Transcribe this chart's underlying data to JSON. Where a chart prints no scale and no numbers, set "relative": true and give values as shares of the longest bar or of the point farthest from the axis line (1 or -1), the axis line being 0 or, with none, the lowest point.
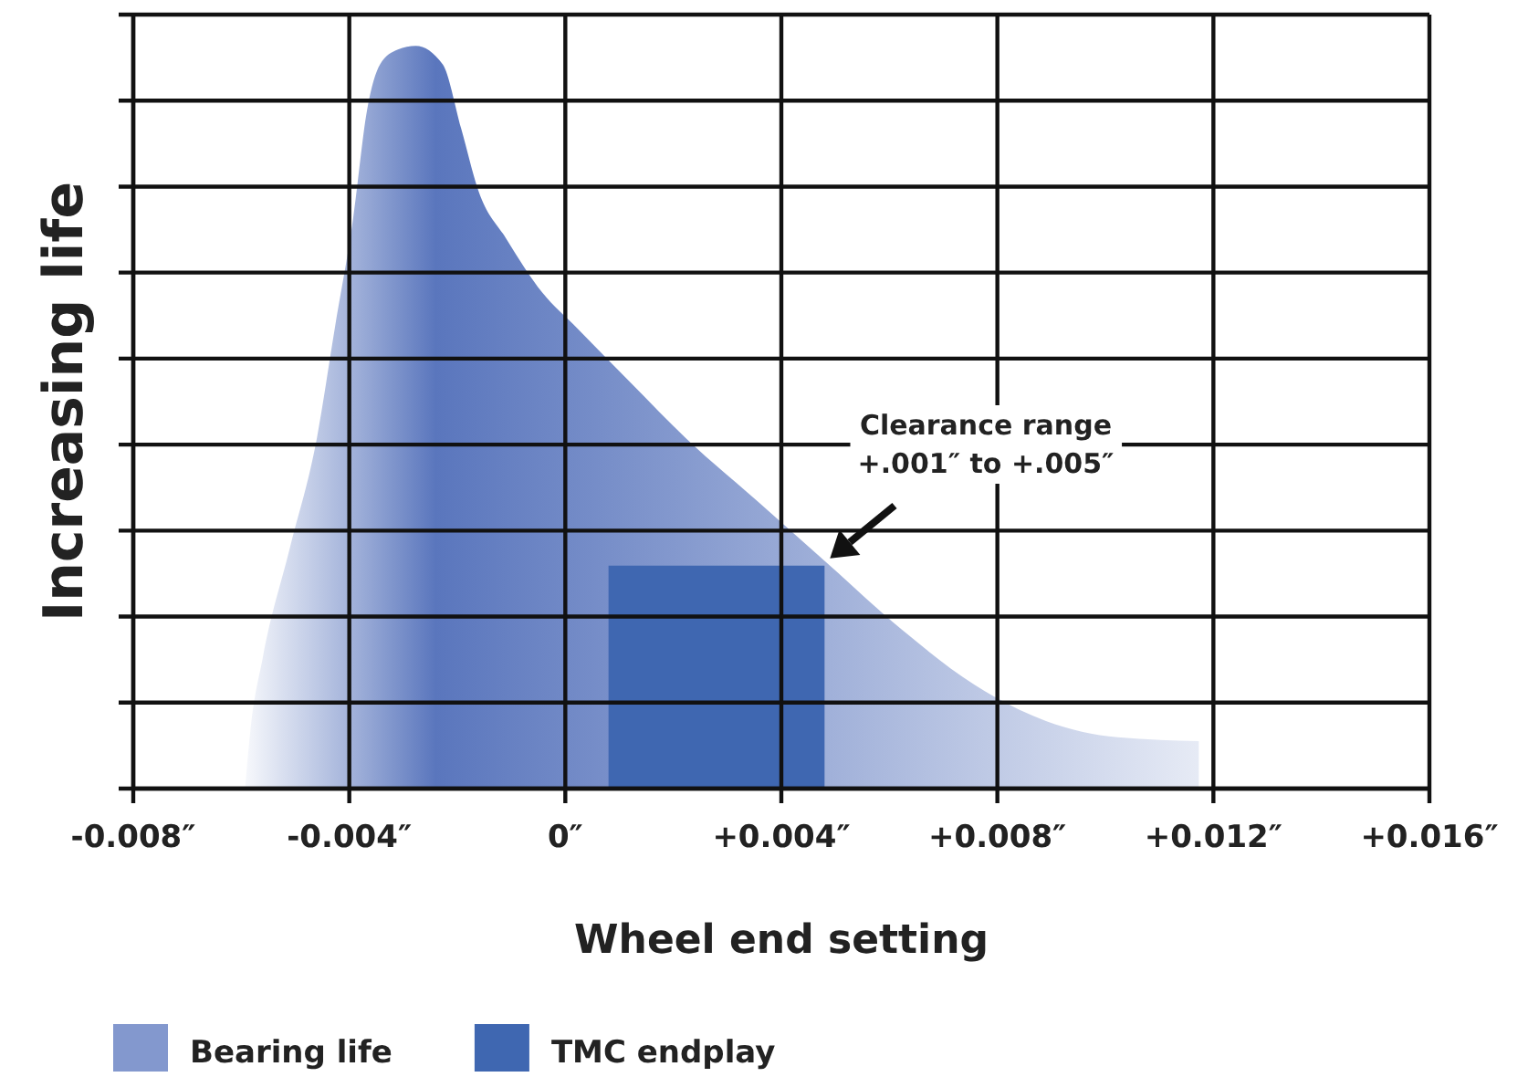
{
  "chart_data": {
    "type": "area",
    "xlabel": "Wheel end setting",
    "ylabel": "Increasing life",
    "relative": true,
    "xlim": [
      -0.008,
      0.016
    ],
    "xticks": [
      {
        "value": -0.008,
        "label": "-0.008″"
      },
      {
        "value": -0.004,
        "label": "-0.004″"
      },
      {
        "value": 0,
        "label": "0″"
      },
      {
        "value": 0.004,
        "label": "+0.004″"
      },
      {
        "value": 0.008,
        "label": "+0.008″"
      },
      {
        "value": 0.012,
        "label": "+0.012″"
      },
      {
        "value": 0.016,
        "label": "+0.016″"
      }
    ],
    "grid": true,
    "legend": "bottom left",
    "series": [
      {
        "name": "Bearing life",
        "color": "#5a76bd",
        "x": [
          -0.00593,
          -0.00583,
          -0.0056,
          -0.0051,
          -0.0046,
          -0.00427,
          -0.00393,
          -0.00367,
          -0.00343,
          -0.0031,
          -0.00277,
          -0.00227,
          -0.00193,
          -0.0016,
          -0.0011,
          -0.00043,
          0.00023,
          0.00123,
          0.00223,
          0.00357,
          0.0049,
          0.00623,
          0.00757,
          0.0089,
          0.01023,
          0.01173
        ],
        "values": [
          0,
          0.079,
          0.177,
          0.324,
          0.472,
          0.619,
          0.767,
          0.914,
          0.975,
          0.995,
          1,
          0.975,
          0.889,
          0.803,
          0.741,
          0.668,
          0.619,
          0.545,
          0.472,
          0.386,
          0.3,
          0.214,
          0.14,
          0.091,
          0.069,
          0.064
        ]
      },
      {
        "name": "TMC endplay",
        "color": "#3f67b1",
        "x": [
          0.0008,
          0.0048
        ],
        "values": [
          0.3,
          0.3
        ]
      }
    ],
    "annotations": [
      "Clearance range\n+.001″ to +.005″"
    ]
  }
}
